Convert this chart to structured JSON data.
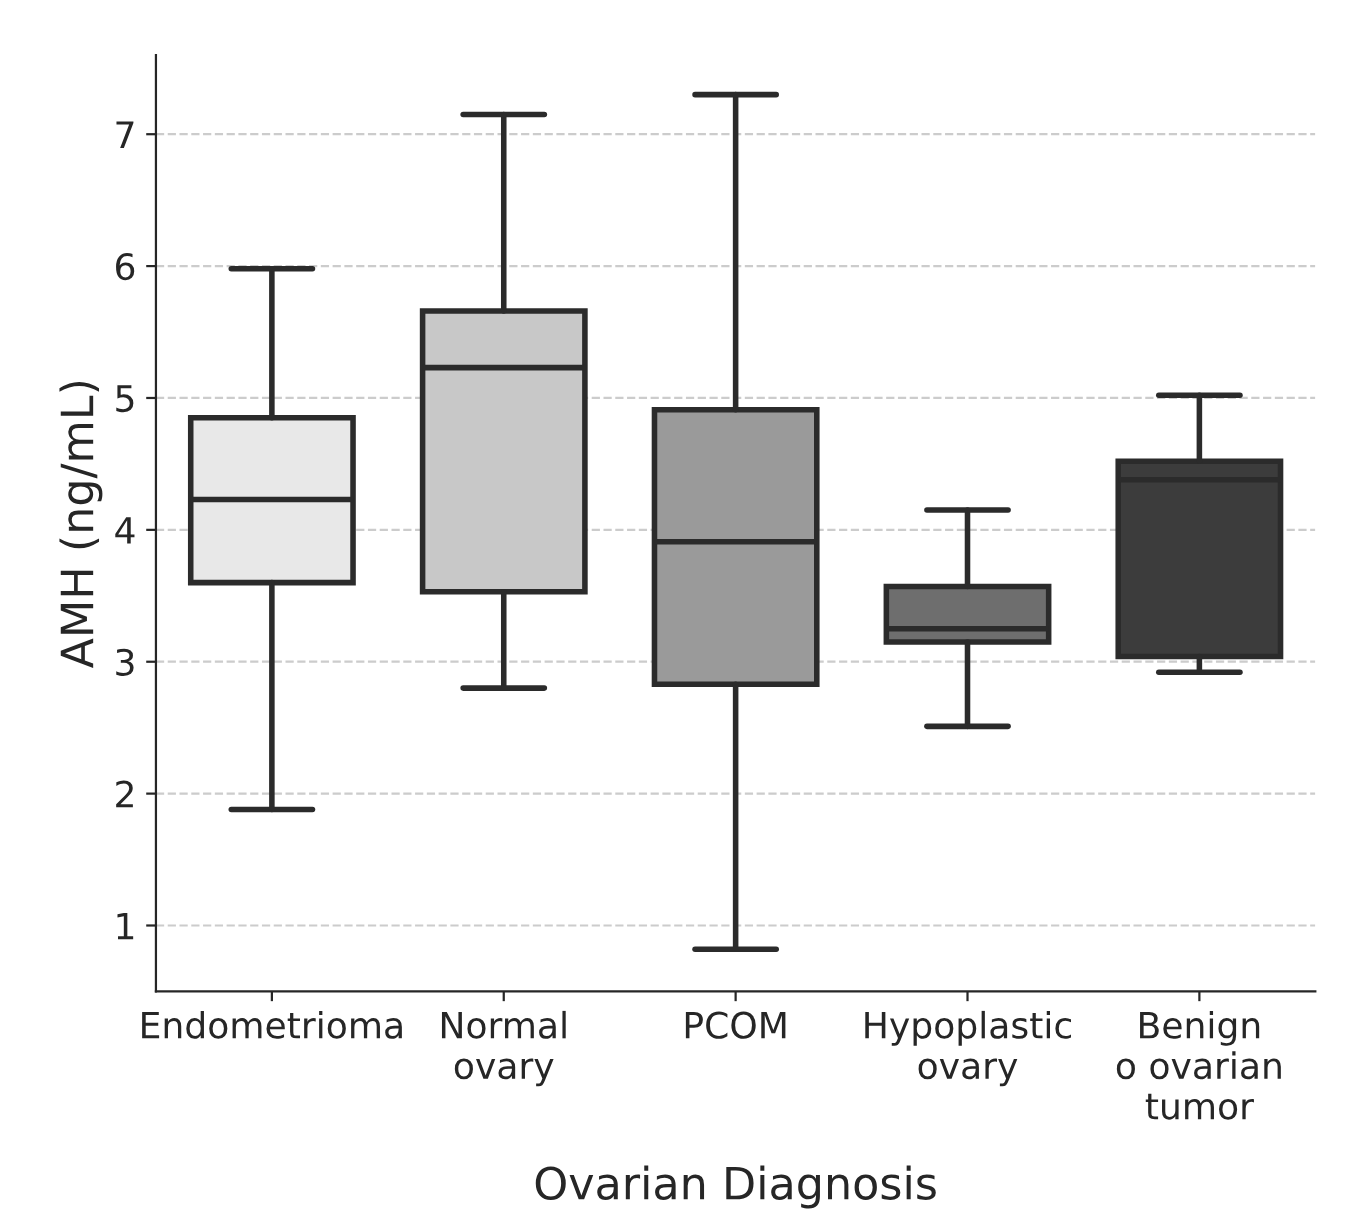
{
  "chart_data": {
    "type": "box",
    "xlabel": "Ovarian Diagnosis",
    "ylabel": "AMH (ng/mL)",
    "categories": [
      "Endometrioma",
      "Normal\novary",
      "PCOM",
      "Hypoplastic\novary",
      "Benign\no ovarian\ntumor"
    ],
    "colors": [
      "#e8e8e8",
      "#c8c8c8",
      "#9a9a9a",
      "#6e6e6e",
      "#3c3c3c"
    ],
    "boxes": [
      {
        "low": 1.88,
        "q1": 3.6,
        "median": 4.23,
        "q3": 4.85,
        "high": 5.98
      },
      {
        "low": 2.8,
        "q1": 3.53,
        "median": 5.23,
        "q3": 5.66,
        "high": 7.15
      },
      {
        "low": 0.82,
        "q1": 2.83,
        "median": 3.91,
        "q3": 4.91,
        "high": 7.3
      },
      {
        "low": 2.51,
        "q1": 3.15,
        "median": 3.25,
        "q3": 3.57,
        "high": 4.15
      },
      {
        "low": 2.92,
        "q1": 3.04,
        "median": 4.38,
        "q3": 4.52,
        "high": 5.02
      }
    ],
    "ylim": [
      0.5,
      7.6
    ],
    "yticks": [
      1,
      2,
      3,
      4,
      5,
      6,
      7
    ],
    "grid": "y"
  }
}
